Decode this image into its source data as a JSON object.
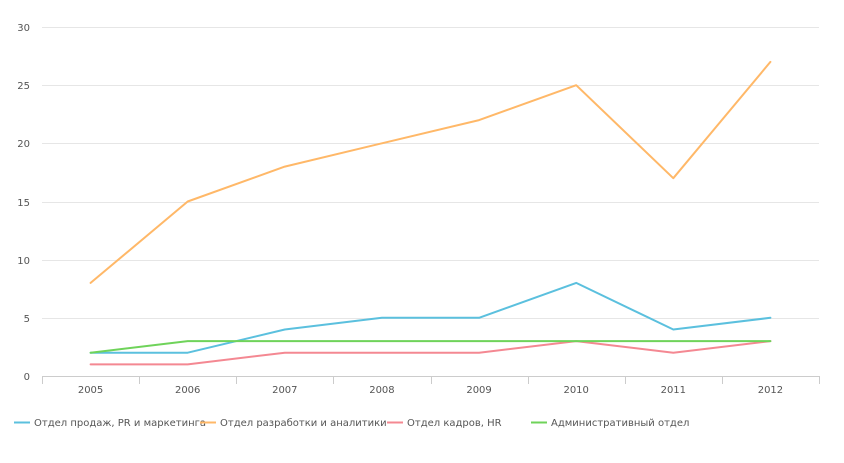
{
  "chart_data": {
    "type": "line",
    "title": "",
    "xlabel": "",
    "ylabel": "",
    "categories": [
      "2005",
      "2006",
      "2007",
      "2008",
      "2009",
      "2010",
      "2011",
      "2012"
    ],
    "ylim": [
      0,
      30
    ],
    "yticks": [
      0,
      5,
      10,
      15,
      20,
      25,
      30
    ],
    "grid": true,
    "legend_position": "bottom-left",
    "series": [
      {
        "name": "Отдел продаж, PR и маркетинга",
        "color": "#5bc0de",
        "values": [
          2,
          2,
          4,
          5,
          5,
          8,
          4,
          5
        ]
      },
      {
        "name": "Отдел разработки и аналитики",
        "color": "#ffb868",
        "values": [
          8,
          15,
          18,
          20,
          22,
          25,
          17,
          27
        ]
      },
      {
        "name": "Отдел кадров, HR",
        "color": "#f48892",
        "values": [
          1,
          1,
          2,
          2,
          2,
          3,
          2,
          3
        ]
      },
      {
        "name": "Административный отдел",
        "color": "#6fd35a",
        "values": [
          2,
          3,
          3,
          3,
          3,
          3,
          3,
          3
        ]
      }
    ]
  }
}
